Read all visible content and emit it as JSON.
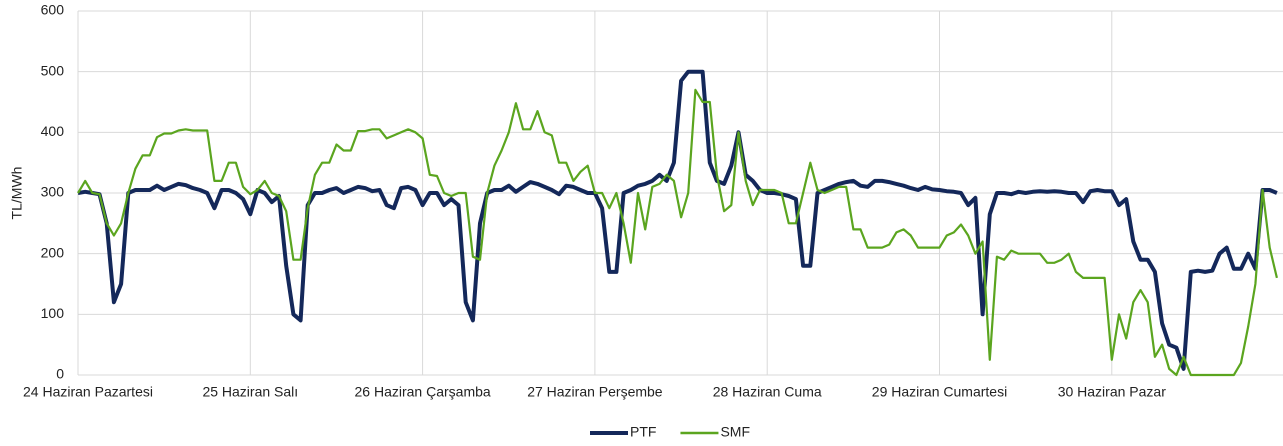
{
  "chart_data": {
    "type": "line",
    "ylabel": "TL/MWh",
    "categories": [
      "24 Haziran Pazartesi",
      null,
      null,
      null,
      null,
      null,
      null,
      null,
      null,
      null,
      null,
      null,
      null,
      null,
      null,
      null,
      null,
      null,
      null,
      null,
      null,
      null,
      null,
      null,
      "25 Haziran Salı",
      null,
      null,
      null,
      null,
      null,
      null,
      null,
      null,
      null,
      null,
      null,
      null,
      null,
      null,
      null,
      null,
      null,
      null,
      null,
      null,
      null,
      null,
      null,
      "26 Haziran Çarşamba",
      null,
      null,
      null,
      null,
      null,
      null,
      null,
      null,
      null,
      null,
      null,
      null,
      null,
      null,
      null,
      null,
      null,
      null,
      null,
      null,
      null,
      null,
      null,
      "27 Haziran Perşembe",
      null,
      null,
      null,
      null,
      null,
      null,
      null,
      null,
      null,
      null,
      null,
      null,
      null,
      null,
      null,
      null,
      null,
      null,
      null,
      null,
      null,
      null,
      null,
      "28 Haziran Cuma",
      null,
      null,
      null,
      null,
      null,
      null,
      null,
      null,
      null,
      null,
      null,
      null,
      null,
      null,
      null,
      null,
      null,
      null,
      null,
      null,
      null,
      null,
      null,
      "29 Haziran Cumartesi",
      null,
      null,
      null,
      null,
      null,
      null,
      null,
      null,
      null,
      null,
      null,
      null,
      null,
      null,
      null,
      null,
      null,
      null,
      null,
      null,
      null,
      null,
      null,
      "30 Haziran Pazar",
      null,
      null,
      null,
      null,
      null,
      null,
      null,
      null,
      null,
      null,
      null,
      null,
      null,
      null,
      null,
      null,
      null,
      null,
      null,
      null,
      null,
      null,
      null
    ],
    "series": [
      {
        "name": "PTF",
        "color": "#14285a",
        "values": [
          300,
          302,
          300,
          298,
          250,
          120,
          150,
          300,
          305,
          305,
          305,
          312,
          305,
          310,
          315,
          313,
          308,
          305,
          300,
          275,
          305,
          305,
          300,
          290,
          265,
          305,
          300,
          285,
          295,
          180,
          100,
          90,
          280,
          300,
          300,
          305,
          308,
          300,
          305,
          310,
          308,
          303,
          305,
          280,
          275,
          308,
          310,
          305,
          280,
          300,
          300,
          280,
          290,
          280,
          120,
          90,
          250,
          300,
          305,
          305,
          312,
          302,
          310,
          318,
          315,
          310,
          305,
          298,
          312,
          310,
          305,
          300,
          300,
          275,
          170,
          170,
          300,
          305,
          312,
          315,
          320,
          330,
          320,
          350,
          485,
          500,
          500,
          500,
          350,
          320,
          315,
          345,
          400,
          330,
          320,
          305,
          300,
          300,
          298,
          295,
          290,
          180,
          180,
          300,
          305,
          310,
          315,
          318,
          320,
          312,
          310,
          320,
          320,
          318,
          315,
          312,
          308,
          305,
          310,
          306,
          305,
          303,
          302,
          300,
          280,
          292,
          100,
          265,
          300,
          300,
          298,
          302,
          300,
          302,
          303,
          302,
          303,
          302,
          300,
          300,
          285,
          303,
          305,
          303,
          303,
          280,
          290,
          220,
          190,
          190,
          170,
          85,
          50,
          45,
          10,
          170,
          172,
          170,
          172,
          200,
          210,
          175,
          175,
          200,
          175,
          305,
          305,
          300
        ]
      },
      {
        "name": "SMF",
        "color": "#5ba51f",
        "values": [
          300,
          320,
          300,
          298,
          250,
          230,
          250,
          300,
          340,
          362,
          362,
          392,
          398,
          398,
          403,
          405,
          403,
          403,
          403,
          320,
          320,
          350,
          350,
          310,
          298,
          305,
          320,
          300,
          295,
          270,
          190,
          190,
          275,
          330,
          350,
          350,
          380,
          370,
          370,
          402,
          402,
          405,
          405,
          390,
          395,
          400,
          405,
          400,
          390,
          330,
          328,
          300,
          295,
          300,
          300,
          195,
          190,
          300,
          345,
          370,
          400,
          448,
          405,
          405,
          435,
          400,
          395,
          350,
          350,
          320,
          335,
          345,
          300,
          300,
          275,
          300,
          250,
          185,
          300,
          240,
          310,
          315,
          330,
          320,
          260,
          300,
          470,
          450,
          450,
          330,
          270,
          280,
          400,
          320,
          280,
          305,
          305,
          305,
          300,
          250,
          250,
          300,
          350,
          305,
          300,
          305,
          310,
          310,
          240,
          240,
          210,
          210,
          210,
          215,
          235,
          240,
          230,
          210,
          210,
          210,
          210,
          230,
          235,
          248,
          230,
          200,
          220,
          25,
          195,
          190,
          205,
          200,
          200,
          200,
          200,
          185,
          185,
          190,
          200,
          170,
          160,
          160,
          160,
          160,
          25,
          100,
          60,
          120,
          140,
          120,
          30,
          50,
          10,
          0,
          30,
          0,
          0,
          0,
          0,
          0,
          0,
          0,
          20,
          80,
          150,
          305,
          210,
          160
        ]
      }
    ],
    "ylim": [
      0,
      600
    ],
    "yticks": [
      0,
      100,
      200,
      300,
      400,
      500,
      600
    ],
    "grid": true,
    "legend": "bottom"
  }
}
